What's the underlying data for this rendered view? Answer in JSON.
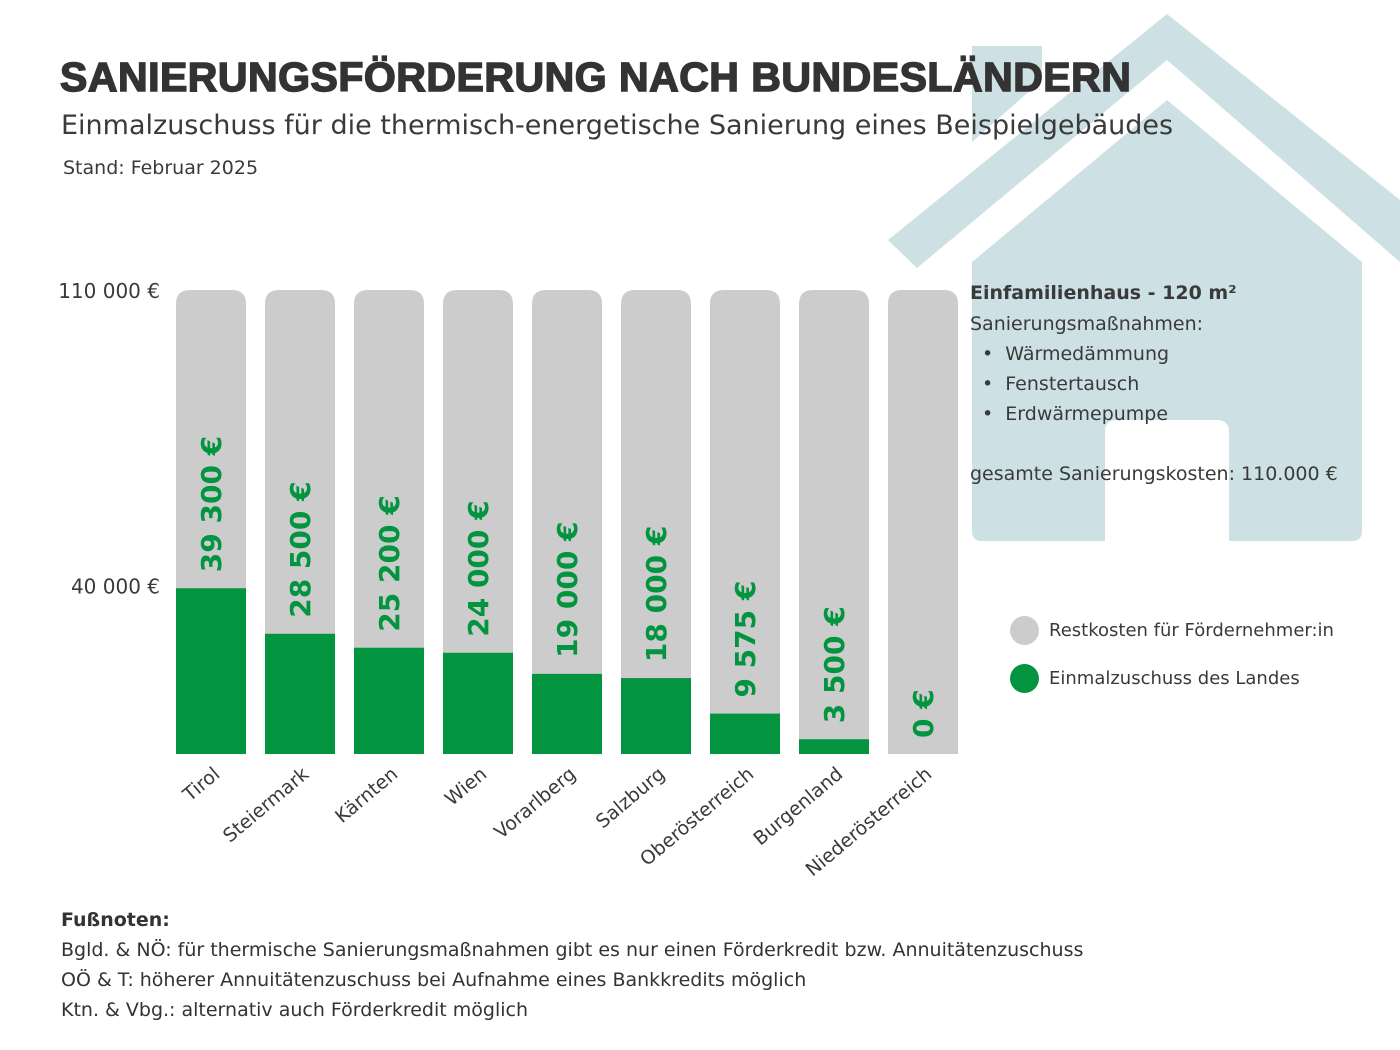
{
  "header": {
    "title": "SANIERUNGSFÖRDERUNG NACH BUNDESLÄNDERN",
    "subtitle": "Einmalzuschuss für die thermisch-energetische Sanierung eines Beispielgebäudes",
    "stand": "Stand: Februar 2025"
  },
  "info": {
    "title": "Einfamilienhaus - 120 m²",
    "measures_label": "Sanierungsmaßnahmen:",
    "measures": [
      "Wärmedämmung",
      "Fenstertausch",
      "Erdwärmepumpe"
    ],
    "total": "gesamte Sanierungskosten: 110.000 €"
  },
  "colors": {
    "green": "#03943f",
    "grey": "#cccccc",
    "house": "#cde1e4",
    "text": "#3a3a3a"
  },
  "legend": [
    {
      "label": "Restkosten für Fördernehmer:in",
      "color": "#cccccc"
    },
    {
      "label": "Einmalzuschuss des Landes",
      "color": "#03943f"
    }
  ],
  "chart_data": {
    "type": "bar",
    "stacked": true,
    "categories": [
      "Tirol",
      "Steiermark",
      "Kärnten",
      "Wien",
      "Vorarlberg",
      "Salzburg",
      "Oberösterreich",
      "Burgenland",
      "Niederösterreich"
    ],
    "series": [
      {
        "name": "Einmalzuschuss des Landes",
        "values": [
          39300,
          28500,
          25200,
          24000,
          19000,
          18000,
          9575,
          3500,
          0
        ]
      },
      {
        "name": "Restkosten für Fördernehmer:in",
        "values": [
          70700,
          81500,
          84800,
          86000,
          91000,
          92000,
          100425,
          106500,
          110000
        ]
      }
    ],
    "data_labels": [
      "39 300 €",
      "28 500 €",
      "25 200 €",
      "24 000 €",
      "19 000 €",
      "18 000 €",
      "9 575 €",
      "3 500 €",
      "0 €"
    ],
    "y_ticks": [
      40000,
      110000
    ],
    "y_tick_labels": [
      "40 000 €",
      "110 000 €"
    ],
    "ylim": [
      0,
      110000
    ],
    "grid": false,
    "legend_position": "right"
  },
  "footnotes": {
    "heading": "Fußnoten:",
    "lines": [
      "Bgld. & NÖ: für thermische Sanierungsmaßnahmen gibt es nur einen Förderkredit bzw. Annuitätenzuschuss",
      "OÖ & T: höherer Annuitätenzuschuss bei Aufnahme eines Bankkredits möglich",
      "Ktn. & Vbg.: alternativ auch Förderkredit möglich"
    ]
  }
}
